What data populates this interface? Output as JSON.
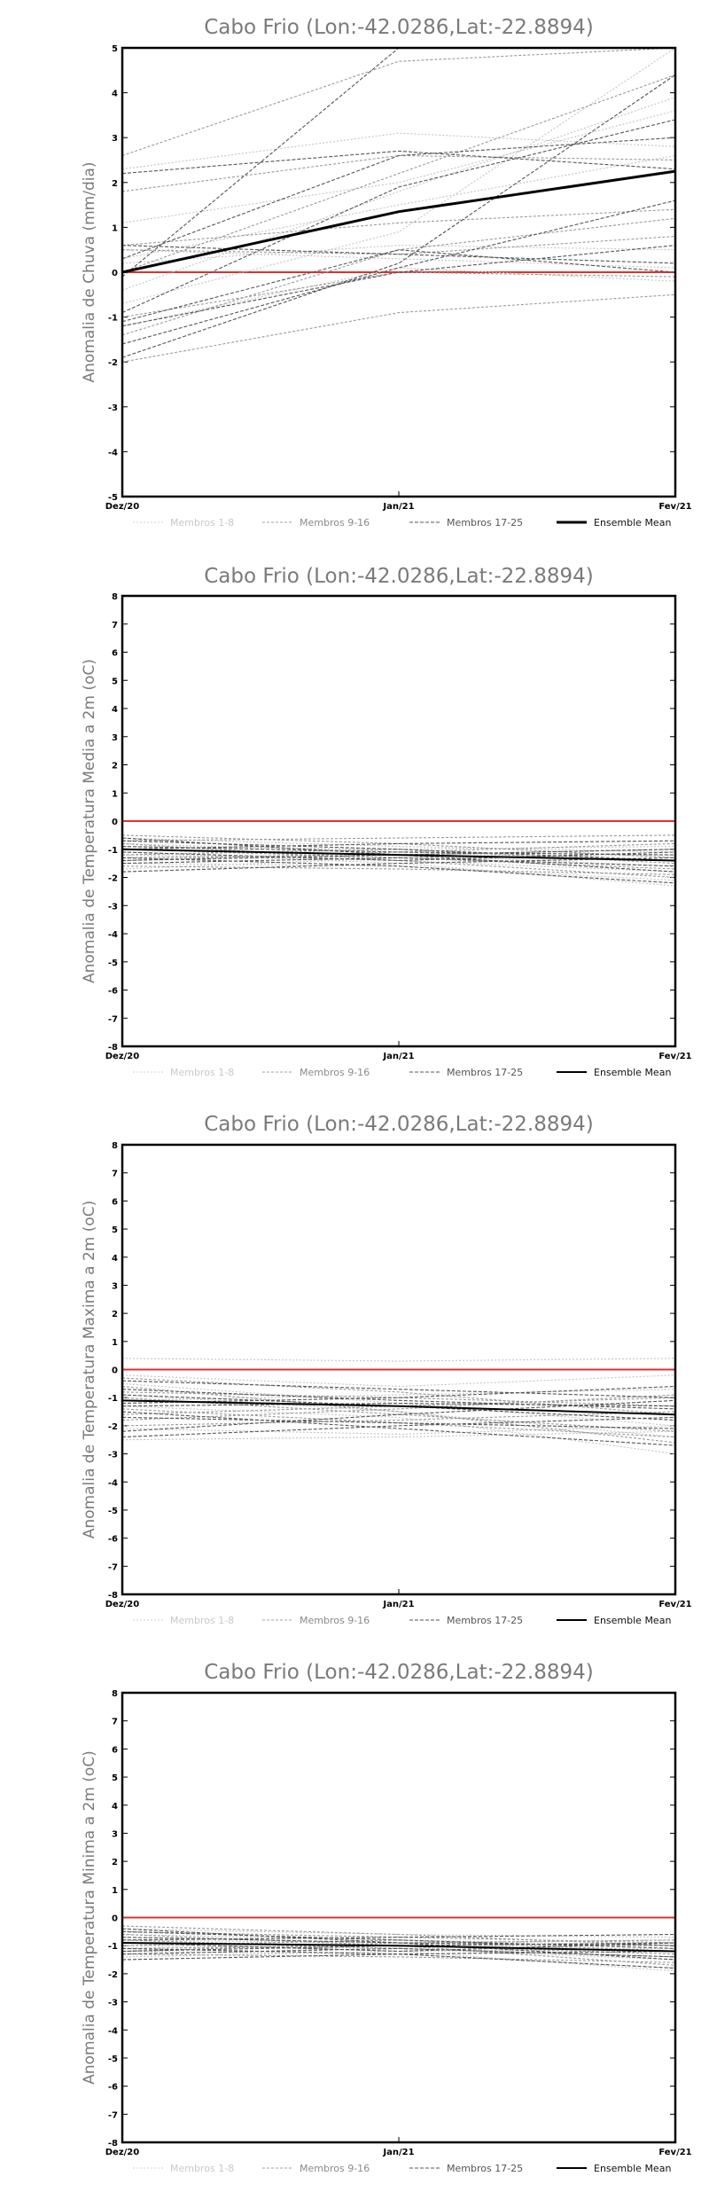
{
  "chart_data": [
    {
      "type": "line",
      "title": "Cabo Frio (Lon:-42.0286,Lat:-22.8894)",
      "ylabel": "Anomalia de Chuva (mm/dia)",
      "categories": [
        "Dez/20",
        "Jan/21",
        "Fev/21"
      ],
      "ylim": [
        -5,
        5
      ],
      "yticks": [
        -5,
        -4,
        -3,
        -2,
        -1,
        0,
        1,
        2,
        3,
        4,
        5
      ],
      "reference_line": 0,
      "legend": [
        "Membros 1-8",
        "Membros 9-16",
        "Membros 17-25",
        "Ensemble Mean"
      ],
      "ensemble_mean": [
        0.0,
        1.35,
        2.25
      ],
      "members": [
        [
          0.3,
          1.5,
          2.6
        ],
        [
          -0.4,
          1.8,
          3.9
        ],
        [
          1.1,
          2.0,
          3.6
        ],
        [
          0.2,
          0.6,
          0.5
        ],
        [
          -1.2,
          0.1,
          -0.2
        ],
        [
          2.3,
          3.1,
          2.8
        ],
        [
          0.5,
          0.3,
          0.1
        ],
        [
          -0.7,
          0.9,
          5.0
        ],
        [
          2.6,
          4.7,
          5.0
        ],
        [
          -1.0,
          0.0,
          -0.1
        ],
        [
          0.6,
          1.1,
          1.4
        ],
        [
          1.8,
          2.6,
          2.5
        ],
        [
          0.0,
          2.2,
          4.4
        ],
        [
          -2.0,
          -0.9,
          -0.5
        ],
        [
          0.5,
          0.4,
          0.8
        ],
        [
          -1.4,
          0.5,
          1.2
        ],
        [
          -0.1,
          5.0,
          5.0
        ],
        [
          -1.9,
          0.2,
          4.4
        ],
        [
          0.3,
          2.6,
          3.0
        ],
        [
          -1.2,
          0.0,
          0.6
        ],
        [
          -1.1,
          0.5,
          0.0
        ],
        [
          -0.9,
          1.9,
          3.4
        ],
        [
          -1.6,
          0.1,
          1.6
        ],
        [
          2.2,
          2.7,
          2.3
        ],
        [
          0.6,
          0.4,
          0.2
        ]
      ]
    },
    {
      "type": "line",
      "title": "Cabo Frio (Lon:-42.0286,Lat:-22.8894)",
      "ylabel": "Anomalia de Temperatura Media a 2m (oC)",
      "categories": [
        "Dez/20",
        "Jan/21",
        "Fev/21"
      ],
      "ylim": [
        -8,
        8
      ],
      "yticks": [
        -8,
        -7,
        -6,
        -5,
        -4,
        -3,
        -2,
        -1,
        0,
        1,
        2,
        3,
        4,
        5,
        6,
        7,
        8
      ],
      "reference_line": 0,
      "legend": [
        "Membros 1-8",
        "Membros 9-16",
        "Membros 17-25",
        "Ensemble Mean"
      ],
      "ensemble_mean": [
        -1.0,
        -1.2,
        -1.4
      ],
      "members": [
        [
          -0.6,
          -0.9,
          -1.1
        ],
        [
          -0.8,
          -1.1,
          -1.4
        ],
        [
          -1.0,
          -1.2,
          -1.6
        ],
        [
          -1.2,
          -1.4,
          -1.8
        ],
        [
          -1.5,
          -1.6,
          -2.1
        ],
        [
          -1.7,
          -1.3,
          -1.2
        ],
        [
          -0.9,
          -1.0,
          -0.9
        ],
        [
          -1.1,
          -1.5,
          -2.3
        ],
        [
          -0.7,
          -0.6,
          -0.5
        ],
        [
          -1.3,
          -1.2,
          -1.0
        ],
        [
          -1.6,
          -1.7,
          -1.9
        ],
        [
          -0.5,
          -0.8,
          -1.3
        ],
        [
          -1.0,
          -1.3,
          -1.7
        ],
        [
          -1.4,
          -1.1,
          -0.8
        ],
        [
          -0.8,
          -1.4,
          -2.0
        ],
        [
          -1.2,
          -1.0,
          -1.5
        ],
        [
          -0.9,
          -1.1,
          -1.2
        ],
        [
          -1.5,
          -1.3,
          -1.6
        ],
        [
          -0.7,
          -1.0,
          -1.4
        ],
        [
          -1.1,
          -1.4,
          -1.1
        ],
        [
          -1.3,
          -1.6,
          -2.2
        ],
        [
          -1.0,
          -0.8,
          -0.7
        ],
        [
          -1.8,
          -1.5,
          -1.3
        ],
        [
          -0.6,
          -1.2,
          -1.8
        ],
        [
          -1.4,
          -1.2,
          -1.0
        ]
      ]
    },
    {
      "type": "line",
      "title": "Cabo Frio (Lon:-42.0286,Lat:-22.8894)",
      "ylabel": "Anomalia de Temperatura Maxima a 2m (oC)",
      "categories": [
        "Dez/20",
        "Jan/21",
        "Fev/21"
      ],
      "ylim": [
        -8,
        8
      ],
      "yticks": [
        -8,
        -7,
        -6,
        -5,
        -4,
        -3,
        -2,
        -1,
        0,
        1,
        2,
        3,
        4,
        5,
        6,
        7,
        8
      ],
      "reference_line": 0,
      "legend": [
        "Membros 1-8",
        "Membros 9-16",
        "Membros 17-25",
        "Ensemble Mean"
      ],
      "ensemble_mean": [
        -1.1,
        -1.3,
        -1.6
      ],
      "members": [
        [
          0.4,
          0.3,
          0.4
        ],
        [
          -0.2,
          -0.6,
          -0.2
        ],
        [
          -0.5,
          -1.2,
          -2.0
        ],
        [
          -0.9,
          -1.5,
          -2.4
        ],
        [
          -1.3,
          -1.7,
          -3.0
        ],
        [
          -2.1,
          -2.3,
          -2.0
        ],
        [
          -2.5,
          -2.4,
          -2.2
        ],
        [
          -1.1,
          -0.9,
          -0.7
        ],
        [
          -0.6,
          -1.5,
          -2.6
        ],
        [
          -1.6,
          -1.3,
          -1.0
        ],
        [
          -0.8,
          -1.0,
          -1.3
        ],
        [
          -2.0,
          -1.8,
          -1.5
        ],
        [
          -1.4,
          -1.9,
          -2.4
        ],
        [
          -0.3,
          -0.8,
          -1.6
        ],
        [
          -1.8,
          -1.4,
          -0.9
        ],
        [
          -1.0,
          -1.6,
          -2.2
        ],
        [
          -2.4,
          -2.0,
          -1.7
        ],
        [
          -0.7,
          -1.1,
          -1.4
        ],
        [
          -1.2,
          -1.0,
          -0.6
        ],
        [
          -1.5,
          -2.1,
          -2.7
        ],
        [
          -0.9,
          -1.3,
          -1.8
        ],
        [
          -2.2,
          -1.6,
          -1.1
        ],
        [
          -1.7,
          -1.9,
          -2.1
        ],
        [
          -0.4,
          -0.7,
          -1.0
        ],
        [
          -1.3,
          -1.2,
          -1.3
        ]
      ]
    },
    {
      "type": "line",
      "title": "Cabo Frio (Lon:-42.0286,Lat:-22.8894)",
      "ylabel": "Anomalia de Temperatura Minima a 2m (oC)",
      "categories": [
        "Dez/20",
        "Jan/21",
        "Fev/21"
      ],
      "ylim": [
        -8,
        8
      ],
      "yticks": [
        -8,
        -7,
        -6,
        -5,
        -4,
        -3,
        -2,
        -1,
        0,
        1,
        2,
        3,
        4,
        5,
        6,
        7,
        8
      ],
      "reference_line": 0,
      "legend": [
        "Membros 1-8",
        "Membros 9-16",
        "Membros 17-25",
        "Ensemble Mean"
      ],
      "ensemble_mean": [
        -0.9,
        -1.0,
        -1.2
      ],
      "members": [
        [
          -0.4,
          -0.6,
          -0.7
        ],
        [
          -0.6,
          -0.8,
          -1.0
        ],
        [
          -0.8,
          -0.9,
          -1.2
        ],
        [
          -1.0,
          -1.1,
          -1.5
        ],
        [
          -1.2,
          -1.3,
          -1.8
        ],
        [
          -1.4,
          -1.2,
          -1.1
        ],
        [
          -0.7,
          -0.9,
          -0.8
        ],
        [
          -0.9,
          -1.2,
          -1.9
        ],
        [
          -0.5,
          -0.7,
          -0.9
        ],
        [
          -1.1,
          -1.0,
          -1.3
        ],
        [
          -1.3,
          -1.4,
          -1.6
        ],
        [
          -0.3,
          -0.6,
          -1.0
        ],
        [
          -0.8,
          -1.1,
          -1.4
        ],
        [
          -1.2,
          -0.9,
          -0.8
        ],
        [
          -0.6,
          -1.0,
          -1.7
        ],
        [
          -1.0,
          -0.8,
          -1.2
        ],
        [
          -0.7,
          -0.9,
          -1.0
        ],
        [
          -1.3,
          -1.1,
          -1.4
        ],
        [
          -0.5,
          -0.8,
          -1.1
        ],
        [
          -0.9,
          -1.2,
          -0.9
        ],
        [
          -1.1,
          -1.3,
          -1.8
        ],
        [
          -0.8,
          -0.7,
          -0.6
        ],
        [
          -1.5,
          -1.3,
          -1.2
        ],
        [
          -0.4,
          -0.9,
          -1.5
        ],
        [
          -1.2,
          -1.0,
          -0.9
        ]
      ]
    }
  ]
}
